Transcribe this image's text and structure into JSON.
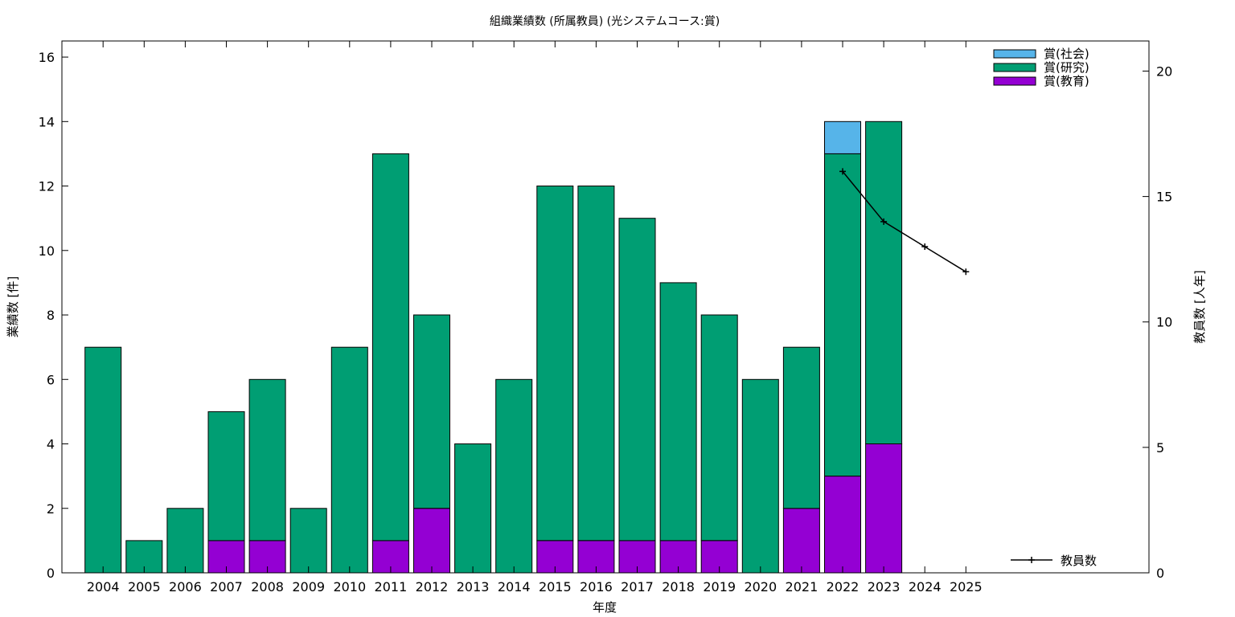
{
  "chart_data": {
    "type": "bar",
    "stacked": true,
    "title": "組織業績数 (所属教員) (光システムコース:賞)",
    "xlabel": "年度",
    "ylabel": "業績数 [件]",
    "y2label": "教員数 [人年]",
    "ylim": [
      0,
      16.5
    ],
    "y2lim": [
      0,
      21.2
    ],
    "yticks": [
      0,
      2,
      4,
      6,
      8,
      10,
      12,
      14,
      16
    ],
    "y2ticks": [
      0,
      5,
      10,
      15,
      20
    ],
    "grid": false,
    "legend_position": "top-right",
    "categories": [
      "2004",
      "2005",
      "2006",
      "2007",
      "2008",
      "2009",
      "2010",
      "2011",
      "2012",
      "2013",
      "2014",
      "2015",
      "2016",
      "2017",
      "2018",
      "2019",
      "2020",
      "2021",
      "2022",
      "2023",
      "2024",
      "2025"
    ],
    "series": [
      {
        "name": "賞(教育)",
        "color": "#9400d3",
        "values": [
          0,
          0,
          0,
          1,
          1,
          0,
          0,
          1,
          2,
          0,
          0,
          1,
          1,
          1,
          1,
          1,
          0,
          2,
          3,
          4,
          0,
          0
        ]
      },
      {
        "name": "賞(研究)",
        "color": "#009e73",
        "values": [
          7,
          1,
          2,
          4,
          5,
          2,
          7,
          12,
          6,
          4,
          6,
          11,
          11,
          10,
          8,
          7,
          6,
          5,
          10,
          10,
          0,
          0
        ]
      },
      {
        "name": "賞(社会)",
        "color": "#56b4e9",
        "values": [
          0,
          0,
          0,
          0,
          0,
          0,
          0,
          0,
          0,
          0,
          0,
          0,
          0,
          0,
          0,
          0,
          0,
          0,
          1,
          0,
          0,
          0
        ]
      }
    ],
    "line_series": {
      "name": "教員数",
      "color": "#000000",
      "axis": "y2",
      "points": [
        {
          "x": "2022",
          "y": 16
        },
        {
          "x": "2023",
          "y": 14
        },
        {
          "x": "2024",
          "y": 13
        },
        {
          "x": "2025",
          "y": 12
        }
      ]
    }
  }
}
